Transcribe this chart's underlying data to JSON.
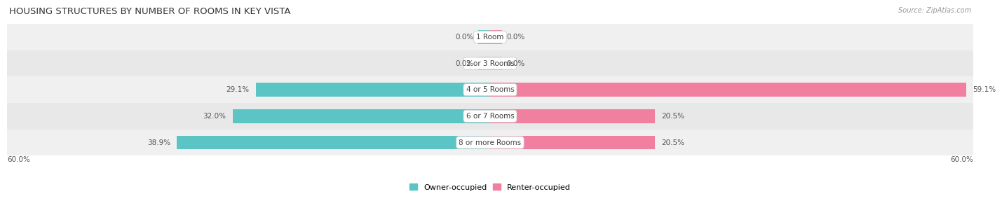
{
  "title": "HOUSING STRUCTURES BY NUMBER OF ROOMS IN KEY VISTA",
  "source": "Source: ZipAtlas.com",
  "categories": [
    "1 Room",
    "2 or 3 Rooms",
    "4 or 5 Rooms",
    "6 or 7 Rooms",
    "8 or more Rooms"
  ],
  "owner_values": [
    0.0,
    0.0,
    29.1,
    32.0,
    38.9
  ],
  "renter_values": [
    0.0,
    0.0,
    59.1,
    20.5,
    20.5
  ],
  "owner_color": "#5bc5c5",
  "renter_color": "#f07fa0",
  "row_bg_colors": [
    "#f0f0f0",
    "#e8e8e8"
  ],
  "axis_max": 60.0,
  "axis_label_left": "60.0%",
  "axis_label_right": "60.0%",
  "title_fontsize": 9.5,
  "source_fontsize": 7,
  "cat_label_fontsize": 7.5,
  "bar_label_fontsize": 7.5,
  "legend_fontsize": 8,
  "owner_label": "Owner-occupied",
  "renter_label": "Renter-occupied"
}
